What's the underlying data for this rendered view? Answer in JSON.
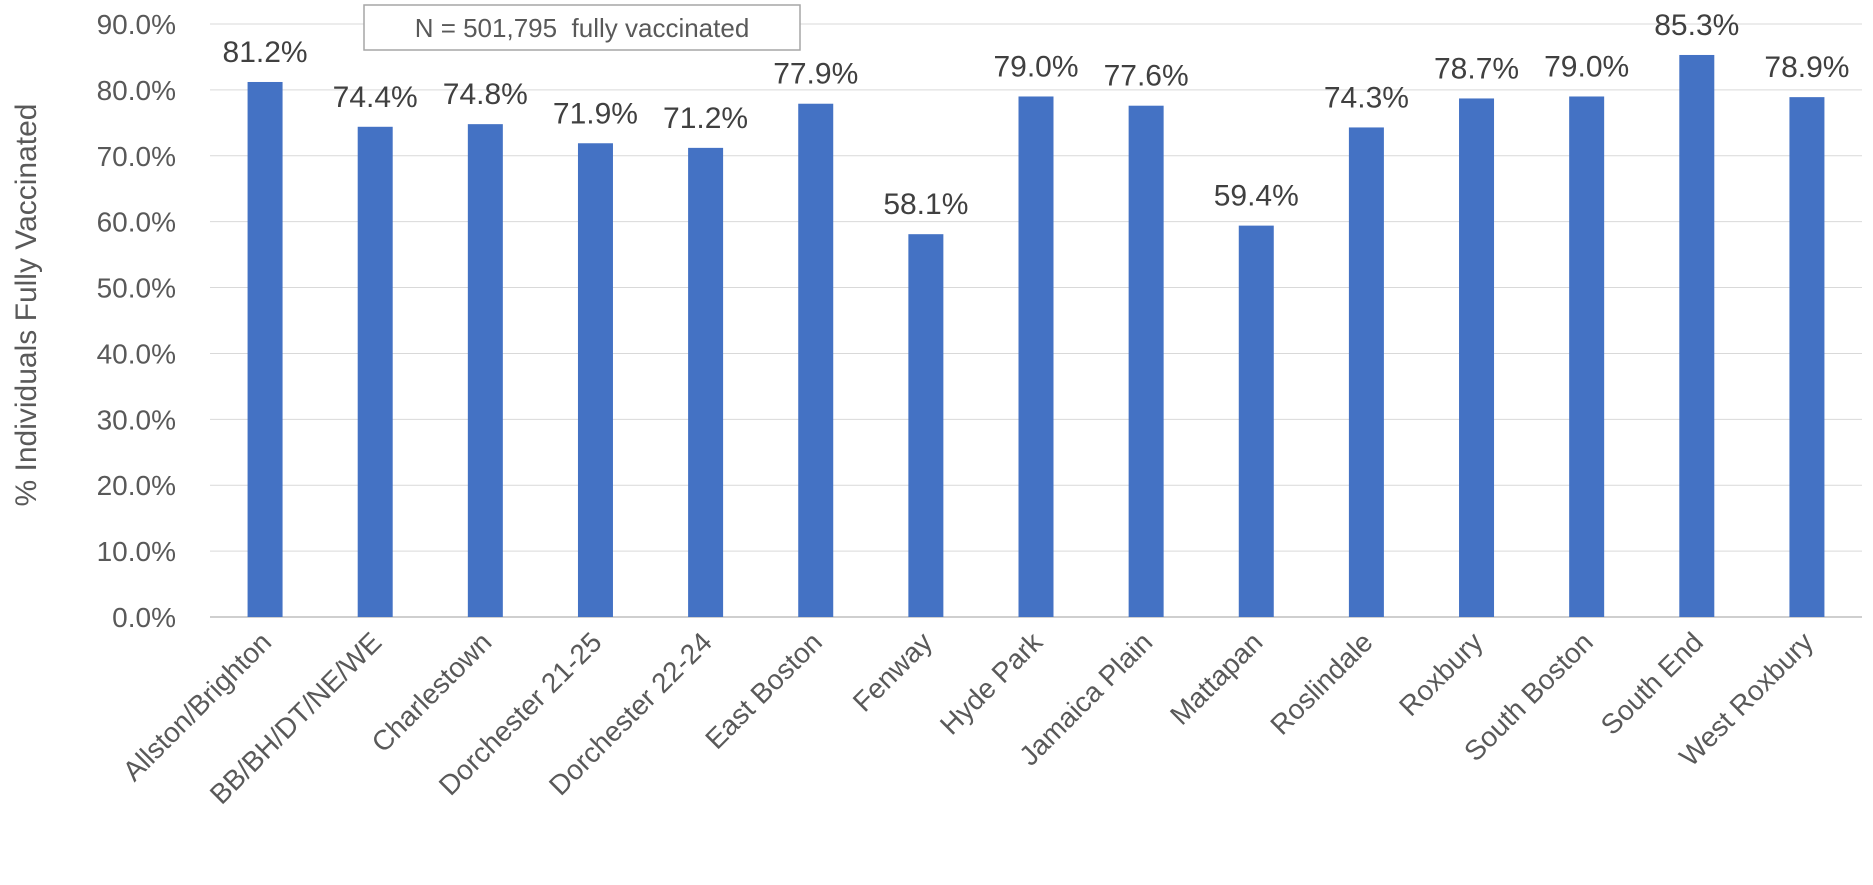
{
  "chart_data": {
    "type": "bar",
    "title": "",
    "xlabel": "",
    "ylabel": "% Individuals Fully Vaccinated",
    "ylim": [
      0,
      90
    ],
    "y_ticks": [
      "0.0%",
      "10.0%",
      "20.0%",
      "30.0%",
      "40.0%",
      "50.0%",
      "60.0%",
      "70.0%",
      "80.0%",
      "90.0%"
    ],
    "grid": true,
    "legend": "none",
    "annotation": "N = 501,795  fully vaccinated",
    "bar_color": "#4472C4",
    "categories": [
      "Allston/Brighton",
      "BB/BH/DT/NE/WE",
      "Charlestown",
      "Dorchester 21-25",
      "Dorchester 22-24",
      "East Boston",
      "Fenway",
      "Hyde Park",
      "Jamaica Plain",
      "Mattapan",
      "Roslindale",
      "Roxbury",
      "South Boston",
      "South End",
      "West Roxbury"
    ],
    "values": [
      81.2,
      74.4,
      74.8,
      71.9,
      71.2,
      77.9,
      58.1,
      79.0,
      77.6,
      59.4,
      74.3,
      78.7,
      79.0,
      85.3,
      78.9
    ],
    "data_labels": [
      "81.2%",
      "74.4%",
      "74.8%",
      "71.9%",
      "71.2%",
      "77.9%",
      "58.1%",
      "79.0%",
      "77.6%",
      "59.4%",
      "74.3%",
      "78.7%",
      "79.0%",
      "85.3%",
      "78.9%"
    ]
  }
}
